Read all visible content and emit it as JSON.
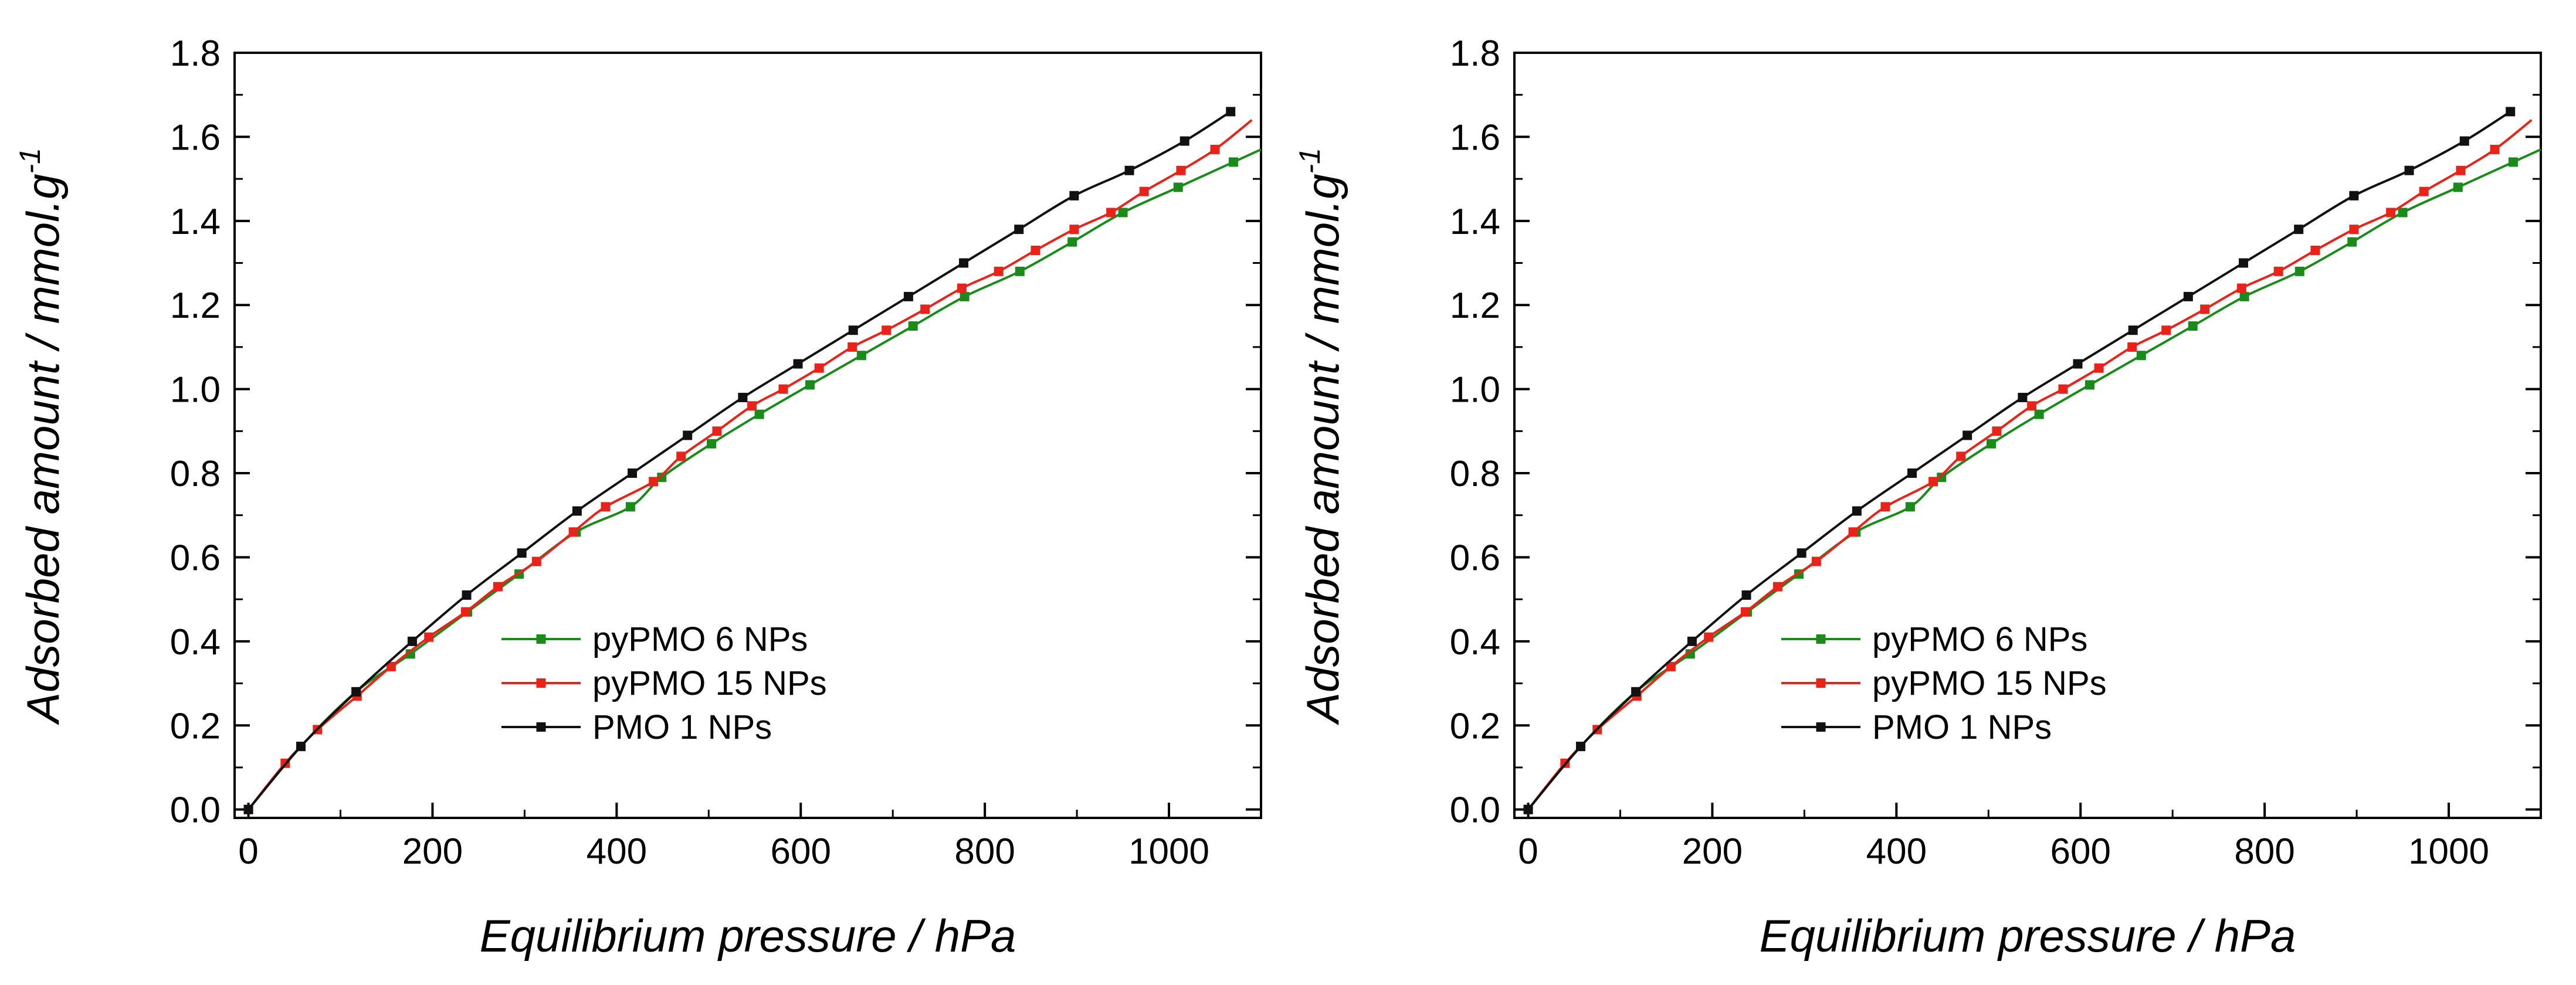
{
  "chart_data": [
    {
      "type": "line",
      "panel": "left",
      "xlabel": "Equilibrium pressure / hPa",
      "ylabel": "Adsorbed amount / mmol.g",
      "ylabel_superscript": "-1",
      "xlim": [
        -15,
        1100
      ],
      "ylim": [
        -0.02,
        1.8
      ],
      "xticks": [
        0,
        200,
        400,
        600,
        800,
        1000
      ],
      "xtick_labels": [
        "0",
        "200",
        "400",
        "600",
        "800",
        "1000"
      ],
      "yticks": [
        0.0,
        0.2,
        0.4,
        0.6,
        0.8,
        1.0,
        1.2,
        1.4,
        1.6,
        1.8
      ],
      "ytick_labels": [
        "0.0",
        "0.2",
        "0.4",
        "0.6",
        "0.8",
        "1.0",
        "1.2",
        "1.4",
        "1.6",
        "1.8"
      ],
      "grid": false,
      "legend_position": "center-left",
      "series": [
        {
          "name": "pyPMO 6 NPs",
          "color": "#1a8a1a",
          "x": [
            0,
            57,
            117,
            176,
            238,
            294,
            356,
            415,
            449,
            503,
            555,
            610,
            666,
            722,
            778,
            838,
            895,
            950,
            1010,
            1070
          ],
          "y": [
            0,
            0.15,
            0.28,
            0.37,
            0.47,
            0.56,
            0.66,
            0.72,
            0.79,
            0.87,
            0.94,
            1.01,
            1.08,
            1.15,
            1.22,
            1.28,
            1.35,
            1.42,
            1.48,
            1.54
          ],
          "curve_end": [
            1100,
            1.57
          ]
        },
        {
          "name": "pyPMO 15 NPs",
          "color": "#e8231a",
          "x": [
            0,
            40,
            75,
            118,
            155,
            196,
            236,
            271,
            313,
            353,
            388,
            440,
            470,
            509,
            547,
            581,
            620,
            656,
            693,
            735,
            775,
            815,
            855,
            897,
            937,
            973,
            1013,
            1050
          ],
          "y": [
            0,
            0.11,
            0.19,
            0.27,
            0.34,
            0.41,
            0.47,
            0.53,
            0.59,
            0.66,
            0.72,
            0.78,
            0.84,
            0.9,
            0.96,
            1.0,
            1.05,
            1.1,
            1.14,
            1.19,
            1.24,
            1.28,
            1.33,
            1.38,
            1.42,
            1.47,
            1.52,
            1.57
          ],
          "curve_end": [
            1090,
            1.64
          ]
        },
        {
          "name": "PMO 1 NPs",
          "color": "#111111",
          "x": [
            0,
            57,
            117,
            178,
            237,
            297,
            357,
            417,
            477,
            537,
            597,
            657,
            717,
            777,
            837,
            897,
            957,
            1017,
            1067
          ],
          "y": [
            0,
            0.15,
            0.28,
            0.4,
            0.51,
            0.61,
            0.71,
            0.8,
            0.89,
            0.98,
            1.06,
            1.14,
            1.22,
            1.3,
            1.38,
            1.46,
            1.52,
            1.59,
            1.66
          ],
          "curve_end": [
            1067,
            1.66
          ]
        }
      ]
    },
    {
      "type": "line",
      "panel": "right",
      "xlabel": "Equilibrium pressure / hPa",
      "ylabel": "Adsorbed amount / mmol.g",
      "ylabel_superscript": "-1",
      "xlim": [
        -15,
        1100
      ],
      "ylim": [
        -0.02,
        1.8
      ],
      "xticks": [
        0,
        200,
        400,
        600,
        800,
        1000
      ],
      "xtick_labels": [
        "0",
        "200",
        "400",
        "600",
        "800",
        "1000"
      ],
      "yticks": [
        0.0,
        0.2,
        0.4,
        0.6,
        0.8,
        1.0,
        1.2,
        1.4,
        1.6,
        1.8
      ],
      "ytick_labels": [
        "0.0",
        "0.2",
        "0.4",
        "0.6",
        "0.8",
        "1.0",
        "1.2",
        "1.4",
        "1.6",
        "1.8"
      ],
      "grid": false,
      "legend_position": "center-left",
      "series": [
        {
          "name": "pyPMO 6 NPs",
          "color": "#1a8a1a",
          "x": [
            0,
            57,
            117,
            176,
            238,
            294,
            356,
            415,
            449,
            503,
            555,
            610,
            666,
            722,
            778,
            838,
            895,
            950,
            1010,
            1070
          ],
          "y": [
            0,
            0.15,
            0.28,
            0.37,
            0.47,
            0.56,
            0.66,
            0.72,
            0.79,
            0.87,
            0.94,
            1.01,
            1.08,
            1.15,
            1.22,
            1.28,
            1.35,
            1.42,
            1.48,
            1.54
          ],
          "curve_end": [
            1100,
            1.57
          ]
        },
        {
          "name": "pyPMO 15 NPs",
          "color": "#e8231a",
          "x": [
            0,
            40,
            75,
            118,
            155,
            196,
            236,
            271,
            313,
            353,
            388,
            440,
            470,
            509,
            547,
            581,
            620,
            656,
            693,
            735,
            775,
            815,
            855,
            897,
            937,
            973,
            1013,
            1050
          ],
          "y": [
            0,
            0.11,
            0.19,
            0.27,
            0.34,
            0.41,
            0.47,
            0.53,
            0.59,
            0.66,
            0.72,
            0.78,
            0.84,
            0.9,
            0.96,
            1.0,
            1.05,
            1.1,
            1.14,
            1.19,
            1.24,
            1.28,
            1.33,
            1.38,
            1.42,
            1.47,
            1.52,
            1.57
          ],
          "curve_end": [
            1090,
            1.64
          ]
        },
        {
          "name": "PMO 1 NPs",
          "color": "#111111",
          "x": [
            0,
            57,
            117,
            178,
            237,
            297,
            357,
            417,
            477,
            537,
            597,
            657,
            717,
            777,
            837,
            897,
            957,
            1017,
            1067
          ],
          "y": [
            0,
            0.15,
            0.28,
            0.4,
            0.51,
            0.61,
            0.71,
            0.8,
            0.89,
            0.98,
            1.06,
            1.14,
            1.22,
            1.3,
            1.38,
            1.46,
            1.52,
            1.59,
            1.66
          ],
          "curve_end": [
            1067,
            1.66
          ]
        }
      ]
    }
  ]
}
